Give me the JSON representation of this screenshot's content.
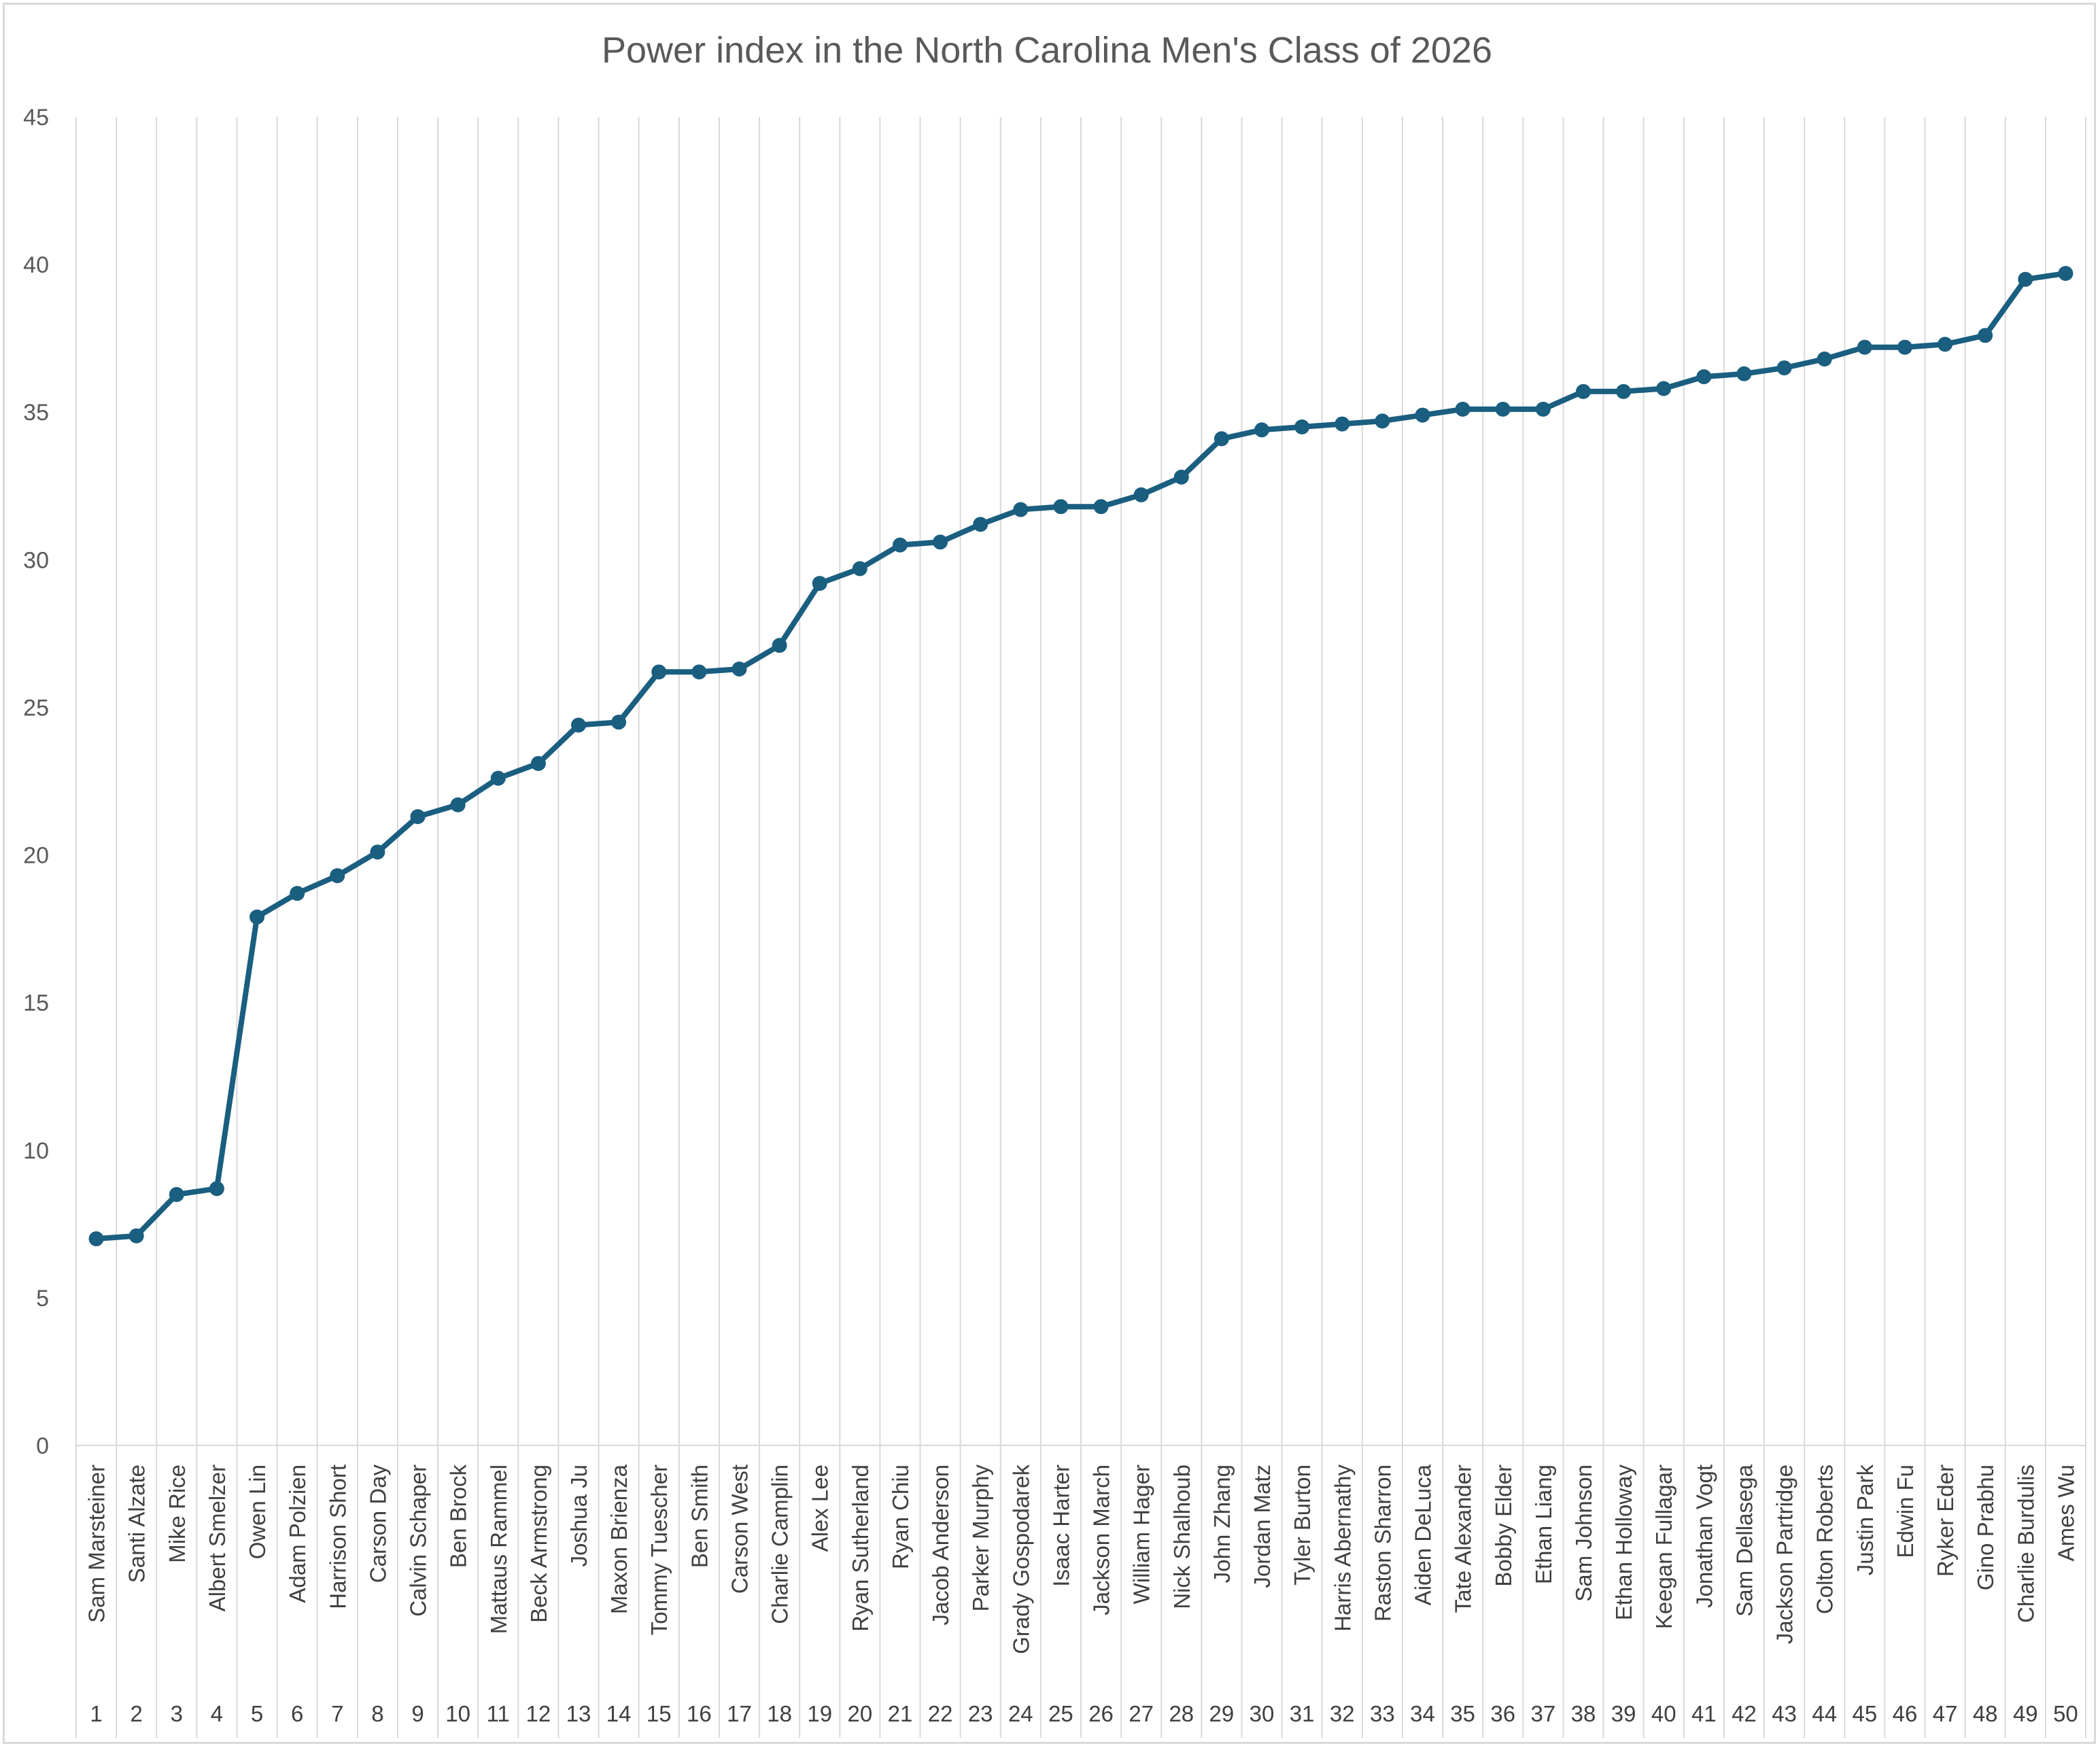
{
  "chart_data": {
    "type": "line",
    "title": "Power index in the North Carolina Men's Class of 2026",
    "xlabel": "",
    "ylabel": "",
    "ylim": [
      0,
      45
    ],
    "yticks": [
      0,
      5,
      10,
      15,
      20,
      25,
      30,
      35,
      40,
      45
    ],
    "grid": "vertical",
    "legend": "none",
    "line_color": "#1a5e80",
    "categories": [
      {
        "rank": "1",
        "name": "Sam Marsteiner"
      },
      {
        "rank": "2",
        "name": "Santi Alzate"
      },
      {
        "rank": "3",
        "name": "Mike Rice"
      },
      {
        "rank": "4",
        "name": "Albert Smelzer"
      },
      {
        "rank": "5",
        "name": "Owen Lin"
      },
      {
        "rank": "6",
        "name": "Adam Polzien"
      },
      {
        "rank": "7",
        "name": "Harrison Short"
      },
      {
        "rank": "8",
        "name": "Carson Day"
      },
      {
        "rank": "9",
        "name": "Calvin Schaper"
      },
      {
        "rank": "10",
        "name": "Ben Brock"
      },
      {
        "rank": "11",
        "name": "Mattaus Rammel"
      },
      {
        "rank": "12",
        "name": "Beck Armstrong"
      },
      {
        "rank": "13",
        "name": "Joshua Ju"
      },
      {
        "rank": "14",
        "name": "Maxon Brienza"
      },
      {
        "rank": "15",
        "name": "Tommy Tuescher"
      },
      {
        "rank": "16",
        "name": "Ben Smith"
      },
      {
        "rank": "17",
        "name": "Carson West"
      },
      {
        "rank": "18",
        "name": "Charlie Camplin"
      },
      {
        "rank": "19",
        "name": "Alex Lee"
      },
      {
        "rank": "20",
        "name": "Ryan Sutherland"
      },
      {
        "rank": "21",
        "name": "Ryan Chiu"
      },
      {
        "rank": "22",
        "name": "Jacob Anderson"
      },
      {
        "rank": "23",
        "name": "Parker Murphy"
      },
      {
        "rank": "24",
        "name": "Grady Gospodarek"
      },
      {
        "rank": "25",
        "name": "Isaac Harter"
      },
      {
        "rank": "26",
        "name": "Jackson March"
      },
      {
        "rank": "27",
        "name": "William Hager"
      },
      {
        "rank": "28",
        "name": "Nick Shalhoub"
      },
      {
        "rank": "29",
        "name": "John Zhang"
      },
      {
        "rank": "30",
        "name": "Jordan Matz"
      },
      {
        "rank": "31",
        "name": "Tyler Burton"
      },
      {
        "rank": "32",
        "name": "Harris Abernathy"
      },
      {
        "rank": "33",
        "name": "Raston Sharron"
      },
      {
        "rank": "34",
        "name": "Aiden DeLuca"
      },
      {
        "rank": "35",
        "name": "Tate Alexander"
      },
      {
        "rank": "36",
        "name": "Bobby Elder"
      },
      {
        "rank": "37",
        "name": "Ethan Liang"
      },
      {
        "rank": "38",
        "name": "Sam Johnson"
      },
      {
        "rank": "39",
        "name": "Ethan Holloway"
      },
      {
        "rank": "40",
        "name": "Keegan Fullagar"
      },
      {
        "rank": "41",
        "name": "Jonathan Vogt"
      },
      {
        "rank": "42",
        "name": "Sam Dellasega"
      },
      {
        "rank": "43",
        "name": "Jackson Partridge"
      },
      {
        "rank": "44",
        "name": "Colton Roberts"
      },
      {
        "rank": "45",
        "name": "Justin Park"
      },
      {
        "rank": "46",
        "name": "Edwin Fu"
      },
      {
        "rank": "47",
        "name": "Ryker Eder"
      },
      {
        "rank": "48",
        "name": "Gino Prabhu"
      },
      {
        "rank": "49",
        "name": "Charlie Burdulis"
      },
      {
        "rank": "50",
        "name": "Ames Wu"
      }
    ],
    "series": [
      {
        "values": [
          7.0,
          7.1,
          8.5,
          8.7,
          17.9,
          18.7,
          19.3,
          20.1,
          21.3,
          21.7,
          22.6,
          23.1,
          24.4,
          24.5,
          26.2,
          26.2,
          26.3,
          27.1,
          29.2,
          29.7,
          30.5,
          30.6,
          31.2,
          31.7,
          31.8,
          31.8,
          32.2,
          32.8,
          34.1,
          34.4,
          34.5,
          34.6,
          34.7,
          34.9,
          35.1,
          35.1,
          35.1,
          35.7,
          35.7,
          35.8,
          36.2,
          36.3,
          36.5,
          36.8,
          37.2,
          37.2,
          37.3,
          37.6,
          39.5,
          39.7
        ]
      }
    ]
  }
}
